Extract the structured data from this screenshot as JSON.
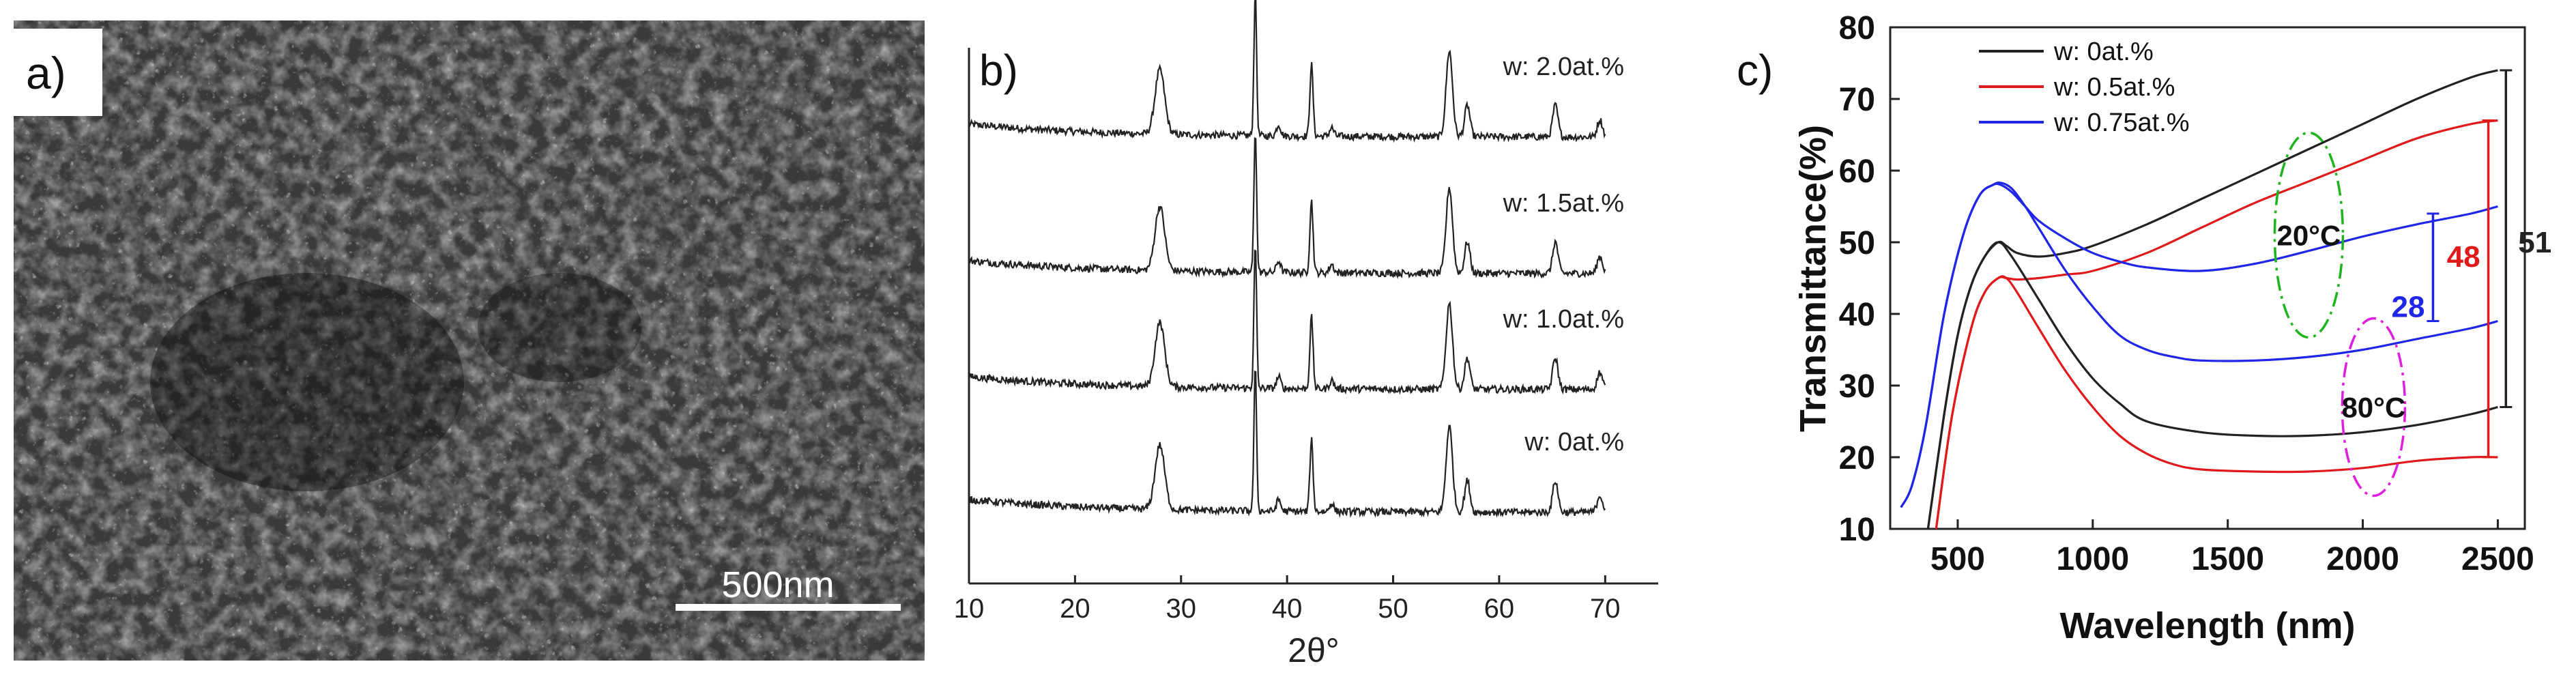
{
  "panels": {
    "a": {
      "label": "a)",
      "scale_bar_text": "500nm",
      "colors": {
        "background": "#1a1a1a",
        "grain_light": "#e0e0e0"
      }
    },
    "b": {
      "label": "b)"
    },
    "c": {
      "label": "c)"
    }
  },
  "chart_data": [
    {
      "type": "line",
      "panel": "b",
      "xlabel": "2θ°",
      "ylabel": "",
      "xlim": [
        10,
        75
      ],
      "x_ticks": [
        10,
        20,
        30,
        40,
        50,
        60,
        70
      ],
      "x_tick_labels": [
        "10",
        "20",
        "30",
        "40",
        "50",
        "60",
        "70"
      ],
      "x_range": [
        10,
        70
      ],
      "peaks": [
        {
          "x": 28.0,
          "h": 0.45,
          "w": 0.9
        },
        {
          "x": 37.0,
          "h": 1.0,
          "w": 0.25
        },
        {
          "x": 39.2,
          "h": 0.08,
          "w": 0.4
        },
        {
          "x": 42.3,
          "h": 0.5,
          "w": 0.3
        },
        {
          "x": 44.2,
          "h": 0.06,
          "w": 0.4
        },
        {
          "x": 55.3,
          "h": 0.6,
          "w": 0.6
        },
        {
          "x": 57.0,
          "h": 0.22,
          "w": 0.5
        },
        {
          "x": 65.3,
          "h": 0.22,
          "w": 0.5
        },
        {
          "x": 69.5,
          "h": 0.12,
          "w": 0.5
        }
      ],
      "series": [
        {
          "name": "w: 2.0at.%",
          "offset": 3
        },
        {
          "name": "w: 1.5at.%",
          "offset": 2
        },
        {
          "name": "w: 1.0at.%",
          "offset": 1
        },
        {
          "name": "w: 0at.%",
          "offset": 0
        }
      ],
      "colors": {
        "line": "#222222"
      }
    },
    {
      "type": "line",
      "panel": "c",
      "xlabel": "Wavelength (nm)",
      "ylabel": "Transmittance(%)",
      "xlim": [
        250,
        2600
      ],
      "ylim": [
        10,
        80
      ],
      "x_ticks": [
        500,
        1000,
        1500,
        2000,
        2500
      ],
      "y_ticks": [
        10,
        20,
        30,
        40,
        50,
        60,
        70,
        80
      ],
      "legend": [
        {
          "name": "w: 0at.%",
          "color": "#222222"
        },
        {
          "name": "w: 0.5at.%",
          "color": "#e0191b"
        },
        {
          "name": "w: 0.75at.%",
          "color": "#1f26e8"
        }
      ],
      "series": [
        {
          "name": "w: 0at.%",
          "condition": "20°C",
          "color": "#222222",
          "x": [
            390,
            450,
            500,
            550,
            600,
            650,
            680,
            720,
            800,
            900,
            1000,
            1200,
            1400,
            1600,
            1800,
            2000,
            2200,
            2400,
            2500
          ],
          "y": [
            10,
            26,
            37,
            44,
            48,
            50,
            49.5,
            48.5,
            48,
            48.5,
            49.5,
            52.5,
            56,
            59.5,
            63,
            66.5,
            70,
            73,
            74
          ]
        },
        {
          "name": "w: 0.5at.%",
          "condition": "20°C",
          "color": "#e0191b",
          "x": [
            420,
            480,
            550,
            600,
            650,
            680,
            720,
            800,
            900,
            1000,
            1200,
            1400,
            1600,
            1800,
            2000,
            2200,
            2400,
            2500
          ],
          "y": [
            10,
            26,
            38,
            43,
            45,
            45,
            44.8,
            45,
            45.5,
            46,
            48.5,
            52,
            55.5,
            58.5,
            61.5,
            64.5,
            66.5,
            67
          ]
        },
        {
          "name": "w: 0.75at.%",
          "condition": "20°C",
          "color": "#1f26e8",
          "x": [
            290,
            330,
            380,
            450,
            520,
            580,
            630,
            660,
            700,
            750,
            800,
            900,
            1000,
            1100,
            1200,
            1400,
            1600,
            1800,
            2000,
            2200,
            2400,
            2500
          ],
          "y": [
            13,
            16,
            24,
            40,
            51,
            56.5,
            58,
            58,
            57,
            55,
            53,
            50.5,
            48.5,
            47.3,
            46.5,
            46,
            47,
            48.8,
            50.8,
            52.5,
            54,
            55
          ]
        },
        {
          "name": "w: 0at.%",
          "condition": "80°C",
          "color": "#222222",
          "x": [
            390,
            450,
            500,
            550,
            600,
            650,
            700,
            800,
            900,
            1000,
            1100,
            1200,
            1400,
            1600,
            1800,
            2000,
            2200,
            2400,
            2500
          ],
          "y": [
            10,
            26,
            37,
            44,
            48,
            50,
            48,
            42,
            36,
            31,
            27.5,
            25,
            23.5,
            23,
            23,
            23.5,
            24.5,
            26,
            27
          ]
        },
        {
          "name": "w: 0.5at.%",
          "condition": "80°C",
          "color": "#e0191b",
          "x": [
            420,
            480,
            550,
            600,
            650,
            680,
            720,
            800,
            900,
            1000,
            1100,
            1200,
            1300,
            1400,
            1600,
            1800,
            2000,
            2200,
            2400,
            2500
          ],
          "y": [
            10,
            26,
            38,
            43,
            45,
            45,
            43,
            38,
            32,
            27,
            23,
            20.5,
            19,
            18.3,
            18,
            18,
            18.5,
            19.5,
            20,
            20
          ]
        },
        {
          "name": "w: 0.75at.%",
          "condition": "80°C",
          "color": "#1f26e8",
          "x": [
            290,
            330,
            380,
            450,
            520,
            580,
            630,
            660,
            700,
            750,
            800,
            900,
            1000,
            1100,
            1200,
            1300,
            1400,
            1600,
            1800,
            2000,
            2200,
            2400,
            2500
          ],
          "y": [
            13,
            16,
            24,
            40,
            51,
            56.5,
            58,
            58.3,
            57.5,
            55,
            52,
            46,
            41,
            37,
            35,
            34,
            33.5,
            33.5,
            34,
            35,
            36.5,
            38,
            39
          ]
        }
      ],
      "annotations": [
        {
          "text": "20°C",
          "x": 1800,
          "y": 51,
          "color": "#1db51d"
        },
        {
          "text": "80°C",
          "x": 2040,
          "y": 27,
          "color": "#e01ee0"
        },
        {
          "text": "28",
          "x": 2230,
          "y": 41,
          "color": "#1f26e8",
          "span": [
            39,
            54
          ]
        },
        {
          "text": "48",
          "x": 2430,
          "y": 48,
          "color": "#e0191b",
          "span": [
            20,
            67
          ]
        },
        {
          "text": "51",
          "x": 2555,
          "y": 50,
          "color": "#222222",
          "span": [
            27,
            74
          ]
        }
      ]
    }
  ]
}
